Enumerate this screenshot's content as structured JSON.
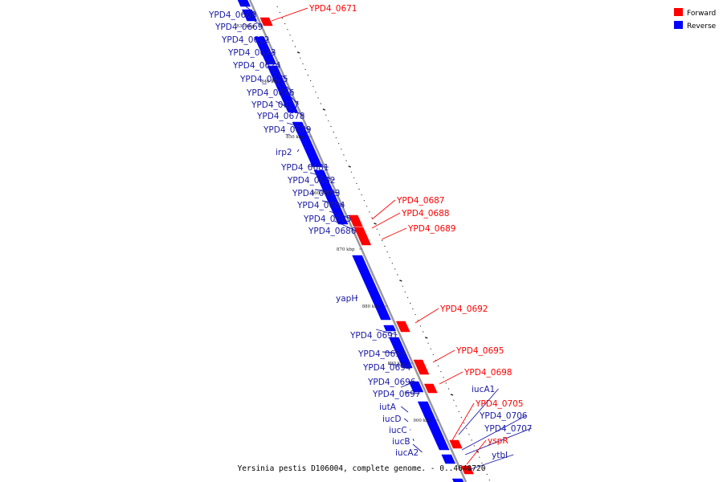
{
  "caption": "Yersinia pestis D106004, complete genome. - 0..4640720",
  "legend": {
    "forward": {
      "label": "Forward",
      "color": "#ff0000"
    },
    "reverse": {
      "label": "Reverse",
      "color": "#0000ff"
    }
  },
  "colors": {
    "backbone": "#9a9a9a",
    "label_forward": "#ff0000",
    "label_reverse": "#1a1aa6"
  },
  "ticks": [
    "830 kbp",
    "840 kbp",
    "850 kbp",
    "860 kbp",
    "870 kbp",
    "880 kbp",
    "890 kbp",
    "900 kbp"
  ],
  "genes": [
    {
      "name": "YPD4_0668",
      "strand": "reverse"
    },
    {
      "name": "YPD4_0669",
      "strand": "reverse"
    },
    {
      "name": "YPD4_0671",
      "strand": "forward"
    },
    {
      "name": "YPD4_0672",
      "strand": "reverse"
    },
    {
      "name": "YPD4_0673",
      "strand": "reverse"
    },
    {
      "name": "YPD4_0674",
      "strand": "reverse"
    },
    {
      "name": "YPD4_0675",
      "strand": "reverse"
    },
    {
      "name": "YPD4_0676",
      "strand": "reverse"
    },
    {
      "name": "YPD4_0677",
      "strand": "reverse"
    },
    {
      "name": "YPD4_0678",
      "strand": "reverse"
    },
    {
      "name": "YPD4_0679",
      "strand": "reverse"
    },
    {
      "name": "irp2",
      "strand": "reverse"
    },
    {
      "name": "YPD4_0681",
      "strand": "reverse"
    },
    {
      "name": "YPD4_0682",
      "strand": "reverse"
    },
    {
      "name": "YPD4_0683",
      "strand": "reverse"
    },
    {
      "name": "YPD4_0684",
      "strand": "reverse"
    },
    {
      "name": "YPD4_0685",
      "strand": "reverse"
    },
    {
      "name": "YPD4_0686",
      "strand": "reverse"
    },
    {
      "name": "YPD4_0687",
      "strand": "forward"
    },
    {
      "name": "YPD4_0688",
      "strand": "forward"
    },
    {
      "name": "YPD4_0689",
      "strand": "forward"
    },
    {
      "name": "yapH",
      "strand": "reverse"
    },
    {
      "name": "YPD4_0691",
      "strand": "reverse"
    },
    {
      "name": "YPD4_0692",
      "strand": "forward"
    },
    {
      "name": "YPD4_0693",
      "strand": "reverse"
    },
    {
      "name": "YPD4_0694",
      "strand": "reverse"
    },
    {
      "name": "YPD4_0695",
      "strand": "forward"
    },
    {
      "name": "YPD4_0696",
      "strand": "reverse"
    },
    {
      "name": "YPD4_0697",
      "strand": "reverse"
    },
    {
      "name": "YPD4_0698",
      "strand": "forward"
    },
    {
      "name": "iutA",
      "strand": "reverse"
    },
    {
      "name": "iucD",
      "strand": "reverse"
    },
    {
      "name": "iucC",
      "strand": "reverse"
    },
    {
      "name": "iucB",
      "strand": "reverse"
    },
    {
      "name": "iucA2",
      "strand": "reverse"
    },
    {
      "name": "iucA1",
      "strand": "reverse"
    },
    {
      "name": "YPD4_0705",
      "strand": "forward"
    },
    {
      "name": "YPD4_0706",
      "strand": "reverse"
    },
    {
      "name": "YPD4_0707",
      "strand": "reverse"
    },
    {
      "name": "yspR",
      "strand": "forward"
    },
    {
      "name": "ytbI",
      "strand": "reverse"
    }
  ]
}
